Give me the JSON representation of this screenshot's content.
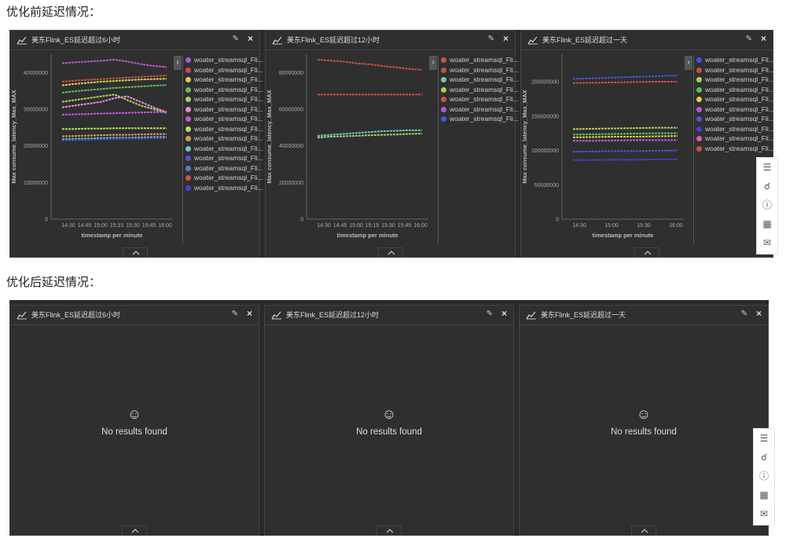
{
  "headings": {
    "before": "优化前延迟情况：",
    "after": "优化后延迟情况："
  },
  "panels_before": [
    {
      "title": "美东Flink_ES延迟超过6小时",
      "ylabel": "Max consume_latency_Max_MAX",
      "xlabel": "timestamp per minute",
      "yticks": [
        "40000000",
        "30000000",
        "20000000",
        "10000000",
        "0"
      ],
      "xticks": [
        "14:30",
        "14:45",
        "15:00",
        "15:15",
        "15:30",
        "15:45",
        "16:00"
      ]
    },
    {
      "title": "美东Flink_ES延迟超过12小时",
      "ylabel": "Max consume_latency_Max_MAX",
      "xlabel": "timestamp per minute",
      "yticks": [
        "80000000",
        "60000000",
        "40000000",
        "20000000",
        "0"
      ],
      "xticks": [
        "14:30",
        "14:45",
        "15:00",
        "15:15",
        "15:30",
        "15:45",
        "16:00"
      ]
    },
    {
      "title": "美东Flink_ES延迟超过一天",
      "ylabel": "Max consume_latency_Max_MAX",
      "xlabel": "timestamp per minute",
      "yticks": [
        "200000000",
        "150000000",
        "100000000",
        "50000000",
        "0"
      ],
      "xticks": [
        "14:30",
        "15:00",
        "15:30",
        "16:00"
      ]
    }
  ],
  "panels_after": [
    {
      "title": "美东Flink_ES延迟超过6小时",
      "message": "No results found"
    },
    {
      "title": "美东Flink_ES延迟超过12小时",
      "message": "No results found"
    },
    {
      "title": "美东Flink_ES延迟超过一天",
      "message": "No results found"
    }
  ],
  "legend_label": "woater_streamsql_Fli...",
  "legend_colors": {
    "p1": [
      "#b65bd0",
      "#c84f4f",
      "#d8d04a",
      "#5fbf5f",
      "#a7d35d",
      "#e08fd0",
      "#c15bd8",
      "#b9d86a",
      "#d59a4f",
      "#70c9b8",
      "#4a54d6",
      "#4a7fd6",
      "#d84f4f",
      "#4a3fcf"
    ],
    "p2": [
      "#c84f4f",
      "#c84f4f",
      "#6fc9b3",
      "#9fd35d",
      "#c84f4f",
      "#b65bd0",
      "#4a54d6"
    ],
    "p3": [
      "#4a54d6",
      "#c84f4f",
      "#a7d35d",
      "#5fbf5f",
      "#d8d04a",
      "#b65bd0",
      "#4a54d6",
      "#4a3fcf",
      "#d85fa0",
      "#c84f4f"
    ]
  },
  "chart_data": [
    {
      "type": "line",
      "title": "美东Flink_ES延迟超过6小时",
      "xlabel": "timestamp per minute",
      "ylabel": "Max consume_latency_Max_MAX",
      "x": [
        "14:25",
        "14:30",
        "14:45",
        "15:00",
        "15:15",
        "15:30",
        "15:45",
        "16:00",
        "16:10"
      ],
      "ylim": [
        0,
        45000000
      ],
      "series": [
        {
          "values": [
            42500000,
            42800000,
            43000000,
            43200000,
            43500000,
            43000000,
            42300000,
            41800000,
            41500000
          ]
        },
        {
          "values": [
            37500000,
            37800000,
            38000000,
            38200000,
            38400000,
            38600000,
            38800000,
            39000000,
            39200000
          ]
        },
        {
          "values": [
            36500000,
            36900000,
            37200000,
            37500000,
            37700000,
            37900000,
            38100000,
            38200000,
            38300000
          ]
        },
        {
          "values": [
            34500000,
            34900000,
            35200000,
            35500000,
            35800000,
            36000000,
            36200000,
            36400000,
            36600000
          ]
        },
        {
          "values": [
            32000000,
            32500000,
            33000000,
            33500000,
            34000000,
            32500000,
            31000000,
            30000000,
            29000000
          ]
        },
        {
          "values": [
            30500000,
            31000000,
            31500000,
            32000000,
            33000000,
            33500000,
            32000000,
            30500000,
            29200000
          ]
        },
        {
          "values": [
            28500000,
            28600000,
            28700000,
            28800000,
            28900000,
            29000000,
            29100000,
            29200000,
            29200000
          ]
        },
        {
          "values": [
            24600000,
            24600000,
            24700000,
            24700000,
            24800000,
            24800000,
            24800000,
            24800000,
            24800000
          ]
        },
        {
          "values": [
            22600000,
            22700000,
            22800000,
            22900000,
            23000000,
            23000000,
            23100000,
            23200000,
            23200000
          ]
        },
        {
          "values": [
            21800000,
            21900000,
            22000000,
            22100000,
            22200000,
            22200000,
            22300000,
            22400000,
            22400000
          ]
        },
        {
          "values": [
            21500000,
            21600000,
            21700000,
            21800000,
            21900000,
            22000000,
            22000000,
            22100000,
            22100000
          ]
        }
      ]
    },
    {
      "type": "line",
      "title": "美东Flink_ES延迟超过12小时",
      "xlabel": "timestamp per minute",
      "ylabel": "Max consume_latency_Max_MAX",
      "x": [
        "14:25",
        "14:30",
        "14:45",
        "15:00",
        "15:15",
        "15:30",
        "15:45",
        "16:00",
        "16:10"
      ],
      "ylim": [
        0,
        90000000
      ],
      "series": [
        {
          "values": [
            87000000,
            86500000,
            86000000,
            85000000,
            84500000,
            83500000,
            82800000,
            82000000,
            81500000
          ]
        },
        {
          "values": [
            68000000,
            68000000,
            68000000,
            68000000,
            68000000,
            68000000,
            68000000,
            68000000,
            68000000
          ]
        },
        {
          "values": [
            45500000,
            46000000,
            46500000,
            47000000,
            47500000,
            48000000,
            48200000,
            48500000,
            48500000
          ]
        },
        {
          "values": [
            44500000,
            45000000,
            45200000,
            45500000,
            45800000,
            46000000,
            46200000,
            46500000,
            46700000
          ]
        }
      ]
    },
    {
      "type": "line",
      "title": "美东Flink_ES延迟超过一天",
      "xlabel": "timestamp per minute",
      "ylabel": "Max consume_latency_Max_MAX",
      "x": [
        "14:25",
        "14:30",
        "15:00",
        "15:30",
        "16:00",
        "16:10"
      ],
      "ylim": [
        0,
        240000000
      ],
      "series": [
        {
          "values": [
            204000000,
            205000000,
            206000000,
            207000000,
            208000000,
            209000000
          ]
        },
        {
          "values": [
            198000000,
            198500000,
            199000000,
            199500000,
            200000000,
            200000000
          ]
        },
        {
          "values": [
            131000000,
            131500000,
            132000000,
            132500000,
            133000000,
            133000000
          ]
        },
        {
          "values": [
            123000000,
            123500000,
            124000000,
            124500000,
            125000000,
            125000000
          ]
        },
        {
          "values": [
            119000000,
            119500000,
            120000000,
            120000000,
            120500000,
            121000000
          ]
        },
        {
          "values": [
            114000000,
            114000000,
            114500000,
            115000000,
            115000000,
            115000000
          ]
        },
        {
          "values": [
            98000000,
            98500000,
            99000000,
            99000000,
            99500000,
            100000000
          ]
        },
        {
          "values": [
            86000000,
            86000000,
            86500000,
            86500000,
            87000000,
            87000000
          ]
        }
      ]
    }
  ]
}
